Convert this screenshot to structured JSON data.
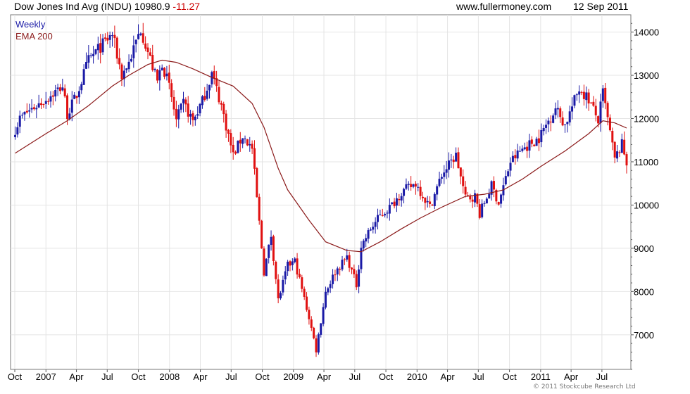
{
  "header": {
    "title": "Dow Jones Ind Avg (INDU)",
    "last": "10980.9",
    "change": "-11.27",
    "site": "www.fullermoney.com",
    "date": "12 Sep 2011"
  },
  "copyright": "© 2011 Stockcube Research Ltd",
  "chart_data": {
    "type": "candlestick",
    "frequency": "Weekly",
    "legend": [
      {
        "name": "Weekly",
        "color": "#1a1aa6"
      },
      {
        "name": "EMA 200",
        "color": "#8b1a1a"
      }
    ],
    "legend_position": "top-left",
    "grid": true,
    "x_range": [
      "2006-10-01",
      "2011-09-12"
    ],
    "ylim": [
      6200,
      14400
    ],
    "y_ticks": [
      7000,
      8000,
      9000,
      10000,
      11000,
      12000,
      13000,
      14000
    ],
    "x_ticks": [
      {
        "label": "Oct",
        "date": "2006-10-01"
      },
      {
        "label": "2007",
        "date": "2007-01-01"
      },
      {
        "label": "Apr",
        "date": "2007-04-01"
      },
      {
        "label": "Jul",
        "date": "2007-07-01"
      },
      {
        "label": "Oct",
        "date": "2007-10-01"
      },
      {
        "label": "2008",
        "date": "2008-01-01"
      },
      {
        "label": "Apr",
        "date": "2008-04-01"
      },
      {
        "label": "Jul",
        "date": "2008-07-01"
      },
      {
        "label": "Oct",
        "date": "2008-10-01"
      },
      {
        "label": "2009",
        "date": "2009-01-01"
      },
      {
        "label": "Apr",
        "date": "2009-04-01"
      },
      {
        "label": "Jul",
        "date": "2009-07-01"
      },
      {
        "label": "Oct",
        "date": "2009-10-01"
      },
      {
        "label": "2010",
        "date": "2010-01-01"
      },
      {
        "label": "Apr",
        "date": "2010-04-01"
      },
      {
        "label": "Jul",
        "date": "2010-07-01"
      },
      {
        "label": "Oct",
        "date": "2010-10-01"
      },
      {
        "label": "2011",
        "date": "2011-01-01"
      },
      {
        "label": "Apr",
        "date": "2011-04-01"
      },
      {
        "label": "Jul",
        "date": "2011-07-01"
      }
    ],
    "up_color": "#1a1aa6",
    "down_color": "#e01010",
    "ema_color": "#8b1a1a",
    "close_series": [
      [
        "2006-10-02",
        11750
      ],
      [
        "2006-10-16",
        12000
      ],
      [
        "2006-11-06",
        12150
      ],
      [
        "2006-12-04",
        12300
      ],
      [
        "2007-01-01",
        12450
      ],
      [
        "2007-02-19",
        12750
      ],
      [
        "2007-03-05",
        12100
      ],
      [
        "2007-04-02",
        12550
      ],
      [
        "2007-05-07",
        13350
      ],
      [
        "2007-06-04",
        13600
      ],
      [
        "2007-07-16",
        13950
      ],
      [
        "2007-08-13",
        13000
      ],
      [
        "2007-09-03",
        13300
      ],
      [
        "2007-10-08",
        14080
      ],
      [
        "2007-10-29",
        13550
      ],
      [
        "2007-11-26",
        12850
      ],
      [
        "2007-12-10",
        13300
      ],
      [
        "2008-01-01",
        12700
      ],
      [
        "2008-01-21",
        11950
      ],
      [
        "2008-02-11",
        12350
      ],
      [
        "2008-03-10",
        11950
      ],
      [
        "2008-04-07",
        12400
      ],
      [
        "2008-05-05",
        13050
      ],
      [
        "2008-06-02",
        12300
      ],
      [
        "2008-07-07",
        11150
      ],
      [
        "2008-08-04",
        11600
      ],
      [
        "2008-09-01",
        11300
      ],
      [
        "2008-10-06",
        8450
      ],
      [
        "2008-10-27",
        9300
      ],
      [
        "2008-11-17",
        7800
      ],
      [
        "2008-12-15",
        8600
      ],
      [
        "2009-01-05",
        8700
      ],
      [
        "2009-02-16",
        7400
      ],
      [
        "2009-03-09",
        6650
      ],
      [
        "2009-04-06",
        8000
      ],
      [
        "2009-05-04",
        8450
      ],
      [
        "2009-06-08",
        8800
      ],
      [
        "2009-07-06",
        8150
      ],
      [
        "2009-07-20",
        9050
      ],
      [
        "2009-08-17",
        9450
      ],
      [
        "2009-09-14",
        9750
      ],
      [
        "2009-10-19",
        10000
      ],
      [
        "2009-11-16",
        10300
      ],
      [
        "2009-12-28",
        10500
      ],
      [
        "2010-02-08",
        9950
      ],
      [
        "2010-03-15",
        10700
      ],
      [
        "2010-04-26",
        11150
      ],
      [
        "2010-05-24",
        10150
      ],
      [
        "2010-06-21",
        10200
      ],
      [
        "2010-07-05",
        9800
      ],
      [
        "2010-08-09",
        10450
      ],
      [
        "2010-08-30",
        10050
      ],
      [
        "2010-10-04",
        11000
      ],
      [
        "2010-11-08",
        11300
      ],
      [
        "2010-12-27",
        11550
      ],
      [
        "2011-02-14",
        12250
      ],
      [
        "2011-03-14",
        11850
      ],
      [
        "2011-04-25",
        12700
      ],
      [
        "2011-05-23",
        12450
      ],
      [
        "2011-06-20",
        11950
      ],
      [
        "2011-07-04",
        12600
      ],
      [
        "2011-08-08",
        11050
      ],
      [
        "2011-08-29",
        11400
      ],
      [
        "2011-09-12",
        10980.9
      ]
    ],
    "ema_200": [
      [
        "2006-10-02",
        11200
      ],
      [
        "2007-01-01",
        11650
      ],
      [
        "2007-03-05",
        11950
      ],
      [
        "2007-05-07",
        12300
      ],
      [
        "2007-07-16",
        12750
      ],
      [
        "2007-09-03",
        13000
      ],
      [
        "2007-10-29",
        13250
      ],
      [
        "2007-12-10",
        13350
      ],
      [
        "2008-01-21",
        13300
      ],
      [
        "2008-03-10",
        13150
      ],
      [
        "2008-05-05",
        12950
      ],
      [
        "2008-07-07",
        12750
      ],
      [
        "2008-09-01",
        12350
      ],
      [
        "2008-10-06",
        11800
      ],
      [
        "2008-11-17",
        10850
      ],
      [
        "2008-12-15",
        10350
      ],
      [
        "2009-02-16",
        9650
      ],
      [
        "2009-04-06",
        9150
      ],
      [
        "2009-06-08",
        8950
      ],
      [
        "2009-07-20",
        8920
      ],
      [
        "2009-09-14",
        9150
      ],
      [
        "2009-11-16",
        9450
      ],
      [
        "2010-01-11",
        9700
      ],
      [
        "2010-03-15",
        9950
      ],
      [
        "2010-05-24",
        10200
      ],
      [
        "2010-07-19",
        10250
      ],
      [
        "2010-09-13",
        10350
      ],
      [
        "2010-11-08",
        10600
      ],
      [
        "2011-01-03",
        10900
      ],
      [
        "2011-03-14",
        11250
      ],
      [
        "2011-05-23",
        11650
      ],
      [
        "2011-07-04",
        11950
      ],
      [
        "2011-08-08",
        11900
      ],
      [
        "2011-09-12",
        11780
      ]
    ]
  }
}
